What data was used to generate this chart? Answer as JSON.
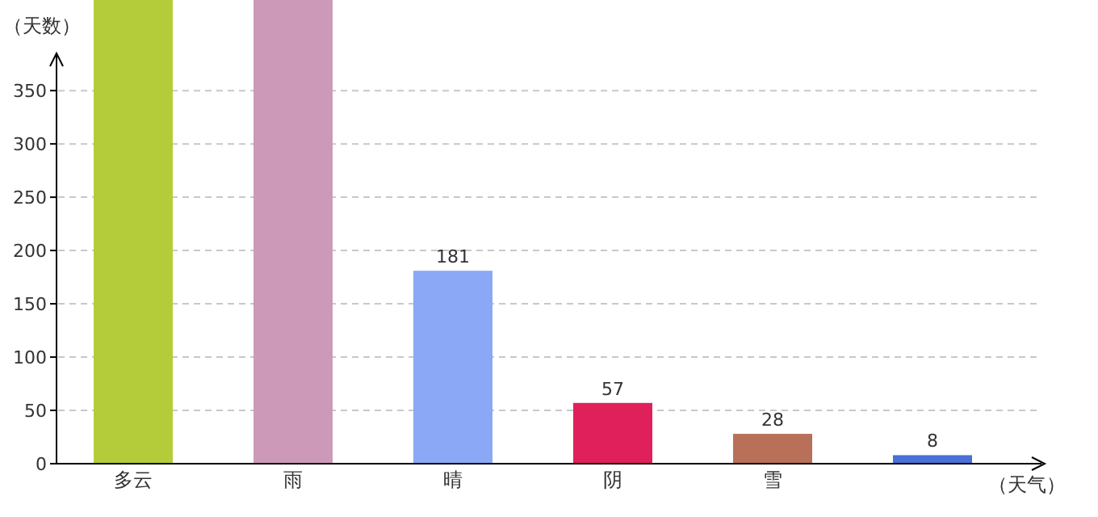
{
  "chart_data": {
    "type": "bar",
    "xlabel": "（天气）",
    "ylabel": "（天数）",
    "categories": [
      "多云",
      "雨",
      "晴",
      "阴",
      "雪",
      null
    ],
    "values": [
      435,
      435,
      181,
      57,
      28,
      8
    ],
    "colors": [
      "#b5cc3a",
      "#cc9ab8",
      "#8aa8f5",
      "#e0205a",
      "#b87058",
      "#4a6fd8"
    ],
    "value_labels": [
      null,
      null,
      "181",
      "57",
      "28",
      "8"
    ],
    "ylim": [
      0,
      435
    ],
    "yticks": [
      0,
      50,
      100,
      150,
      200,
      250,
      300,
      350
    ],
    "grid": "y"
  }
}
